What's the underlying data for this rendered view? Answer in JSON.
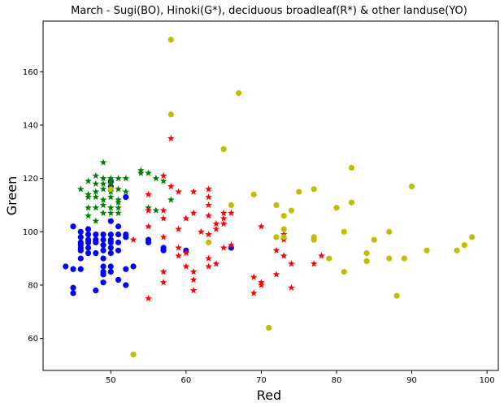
{
  "chart_data": {
    "type": "scatter",
    "title": "March - Sugi(BO), Hinoki(G*), deciduous broadleaf(R*) & other landuse(YO)",
    "xlabel": "Red",
    "ylabel": "Green",
    "xlim": [
      41,
      101.5
    ],
    "ylim": [
      48,
      179
    ],
    "xticks": [
      50,
      60,
      70,
      80,
      90,
      100
    ],
    "yticks": [
      60,
      80,
      100,
      120,
      140,
      160
    ],
    "grid": false,
    "series": [
      {
        "marker": "circle",
        "color": "#0000ff",
        "points": [
          [
            44,
            87
          ],
          [
            45,
            102
          ],
          [
            45,
            86
          ],
          [
            45,
            79
          ],
          [
            45,
            77
          ],
          [
            46,
            100
          ],
          [
            46,
            98
          ],
          [
            46,
            96
          ],
          [
            46,
            95
          ],
          [
            46,
            94
          ],
          [
            46,
            93
          ],
          [
            46,
            90
          ],
          [
            46,
            86
          ],
          [
            47,
            101
          ],
          [
            47,
            99
          ],
          [
            47,
            97
          ],
          [
            47,
            96
          ],
          [
            47,
            94
          ],
          [
            47,
            92
          ],
          [
            48,
            99
          ],
          [
            48,
            97
          ],
          [
            48,
            96
          ],
          [
            48,
            92
          ],
          [
            48,
            78
          ],
          [
            49,
            99
          ],
          [
            49,
            97
          ],
          [
            49,
            95
          ],
          [
            49,
            93
          ],
          [
            49,
            90
          ],
          [
            49,
            87
          ],
          [
            49,
            85
          ],
          [
            49,
            84
          ],
          [
            49,
            81
          ],
          [
            50,
            119
          ],
          [
            50,
            117
          ],
          [
            50,
            104
          ],
          [
            50,
            99
          ],
          [
            50,
            97
          ],
          [
            50,
            96
          ],
          [
            50,
            94
          ],
          [
            50,
            92
          ],
          [
            50,
            87
          ],
          [
            50,
            85
          ],
          [
            51,
            102
          ],
          [
            51,
            99
          ],
          [
            51,
            96
          ],
          [
            51,
            93
          ],
          [
            51,
            82
          ],
          [
            52,
            113
          ],
          [
            52,
            99
          ],
          [
            52,
            98
          ],
          [
            52,
            86
          ],
          [
            52,
            80
          ],
          [
            53,
            87
          ],
          [
            55,
            97
          ],
          [
            55,
            96
          ],
          [
            57,
            94
          ],
          [
            57,
            93
          ],
          [
            60,
            93
          ],
          [
            66,
            94
          ]
        ]
      },
      {
        "marker": "star",
        "color": "#008000",
        "points": [
          [
            46,
            116
          ],
          [
            47,
            119
          ],
          [
            47,
            114
          ],
          [
            47,
            113
          ],
          [
            47,
            109
          ],
          [
            47,
            106
          ],
          [
            48,
            121
          ],
          [
            48,
            118
          ],
          [
            48,
            115
          ],
          [
            48,
            113
          ],
          [
            48,
            109
          ],
          [
            48,
            104
          ],
          [
            49,
            126
          ],
          [
            49,
            120
          ],
          [
            49,
            118
          ],
          [
            49,
            116
          ],
          [
            49,
            112
          ],
          [
            49,
            110
          ],
          [
            49,
            107
          ],
          [
            50,
            120
          ],
          [
            50,
            119
          ],
          [
            50,
            118
          ],
          [
            50,
            115
          ],
          [
            50,
            113
          ],
          [
            50,
            109
          ],
          [
            50,
            107
          ],
          [
            51,
            120
          ],
          [
            51,
            116
          ],
          [
            51,
            112
          ],
          [
            51,
            111
          ],
          [
            51,
            109
          ],
          [
            51,
            107
          ],
          [
            52,
            120
          ],
          [
            52,
            115
          ],
          [
            54,
            123
          ],
          [
            54,
            122
          ],
          [
            55,
            122
          ],
          [
            55,
            109
          ],
          [
            56,
            120
          ],
          [
            56,
            108
          ],
          [
            57,
            119
          ],
          [
            58,
            112
          ]
        ]
      },
      {
        "marker": "star",
        "color": "#ff0000",
        "points": [
          [
            53,
            97
          ],
          [
            55,
            114
          ],
          [
            55,
            108
          ],
          [
            55,
            102
          ],
          [
            55,
            75
          ],
          [
            57,
            121
          ],
          [
            57,
            108
          ],
          [
            57,
            105
          ],
          [
            57,
            98
          ],
          [
            57,
            85
          ],
          [
            57,
            81
          ],
          [
            58,
            135
          ],
          [
            58,
            117
          ],
          [
            59,
            115
          ],
          [
            59,
            101
          ],
          [
            59,
            94
          ],
          [
            59,
            91
          ],
          [
            60,
            105
          ],
          [
            60,
            92
          ],
          [
            60,
            87
          ],
          [
            61,
            115
          ],
          [
            61,
            107
          ],
          [
            61,
            85
          ],
          [
            61,
            82
          ],
          [
            61,
            78
          ],
          [
            62,
            100
          ],
          [
            63,
            116
          ],
          [
            63,
            113
          ],
          [
            63,
            110
          ],
          [
            63,
            106
          ],
          [
            63,
            99
          ],
          [
            63,
            90
          ],
          [
            63,
            87
          ],
          [
            64,
            103
          ],
          [
            64,
            101
          ],
          [
            64,
            88
          ],
          [
            65,
            107
          ],
          [
            65,
            105
          ],
          [
            65,
            103
          ],
          [
            65,
            94
          ],
          [
            66,
            107
          ],
          [
            66,
            95
          ],
          [
            69,
            83
          ],
          [
            69,
            77
          ],
          [
            70,
            102
          ],
          [
            70,
            81
          ],
          [
            70,
            80
          ],
          [
            72,
            93
          ],
          [
            72,
            84
          ],
          [
            73,
            99
          ],
          [
            73,
            97
          ],
          [
            73,
            91
          ],
          [
            74,
            88
          ],
          [
            74,
            79
          ],
          [
            77,
            88
          ],
          [
            78,
            91
          ]
        ]
      },
      {
        "marker": "circle",
        "color": "#bfbf00",
        "points": [
          [
            50,
            116
          ],
          [
            53,
            54
          ],
          [
            58,
            172
          ],
          [
            58,
            144
          ],
          [
            63,
            96
          ],
          [
            65,
            131
          ],
          [
            66,
            110
          ],
          [
            67,
            152
          ],
          [
            69,
            114
          ],
          [
            71,
            64
          ],
          [
            72,
            110
          ],
          [
            72,
            98
          ],
          [
            73,
            106
          ],
          [
            73,
            101
          ],
          [
            73,
            98
          ],
          [
            74,
            108
          ],
          [
            75,
            115
          ],
          [
            77,
            116
          ],
          [
            77,
            98
          ],
          [
            77,
            97
          ],
          [
            79,
            90
          ],
          [
            80,
            109
          ],
          [
            81,
            100
          ],
          [
            81,
            85
          ],
          [
            82,
            124
          ],
          [
            82,
            111
          ],
          [
            84,
            92
          ],
          [
            84,
            89
          ],
          [
            85,
            97
          ],
          [
            87,
            100
          ],
          [
            87,
            90
          ],
          [
            88,
            76
          ],
          [
            89,
            90
          ],
          [
            90,
            117
          ],
          [
            92,
            93
          ],
          [
            96,
            93
          ],
          [
            97,
            95
          ],
          [
            98,
            98
          ]
        ]
      }
    ]
  }
}
